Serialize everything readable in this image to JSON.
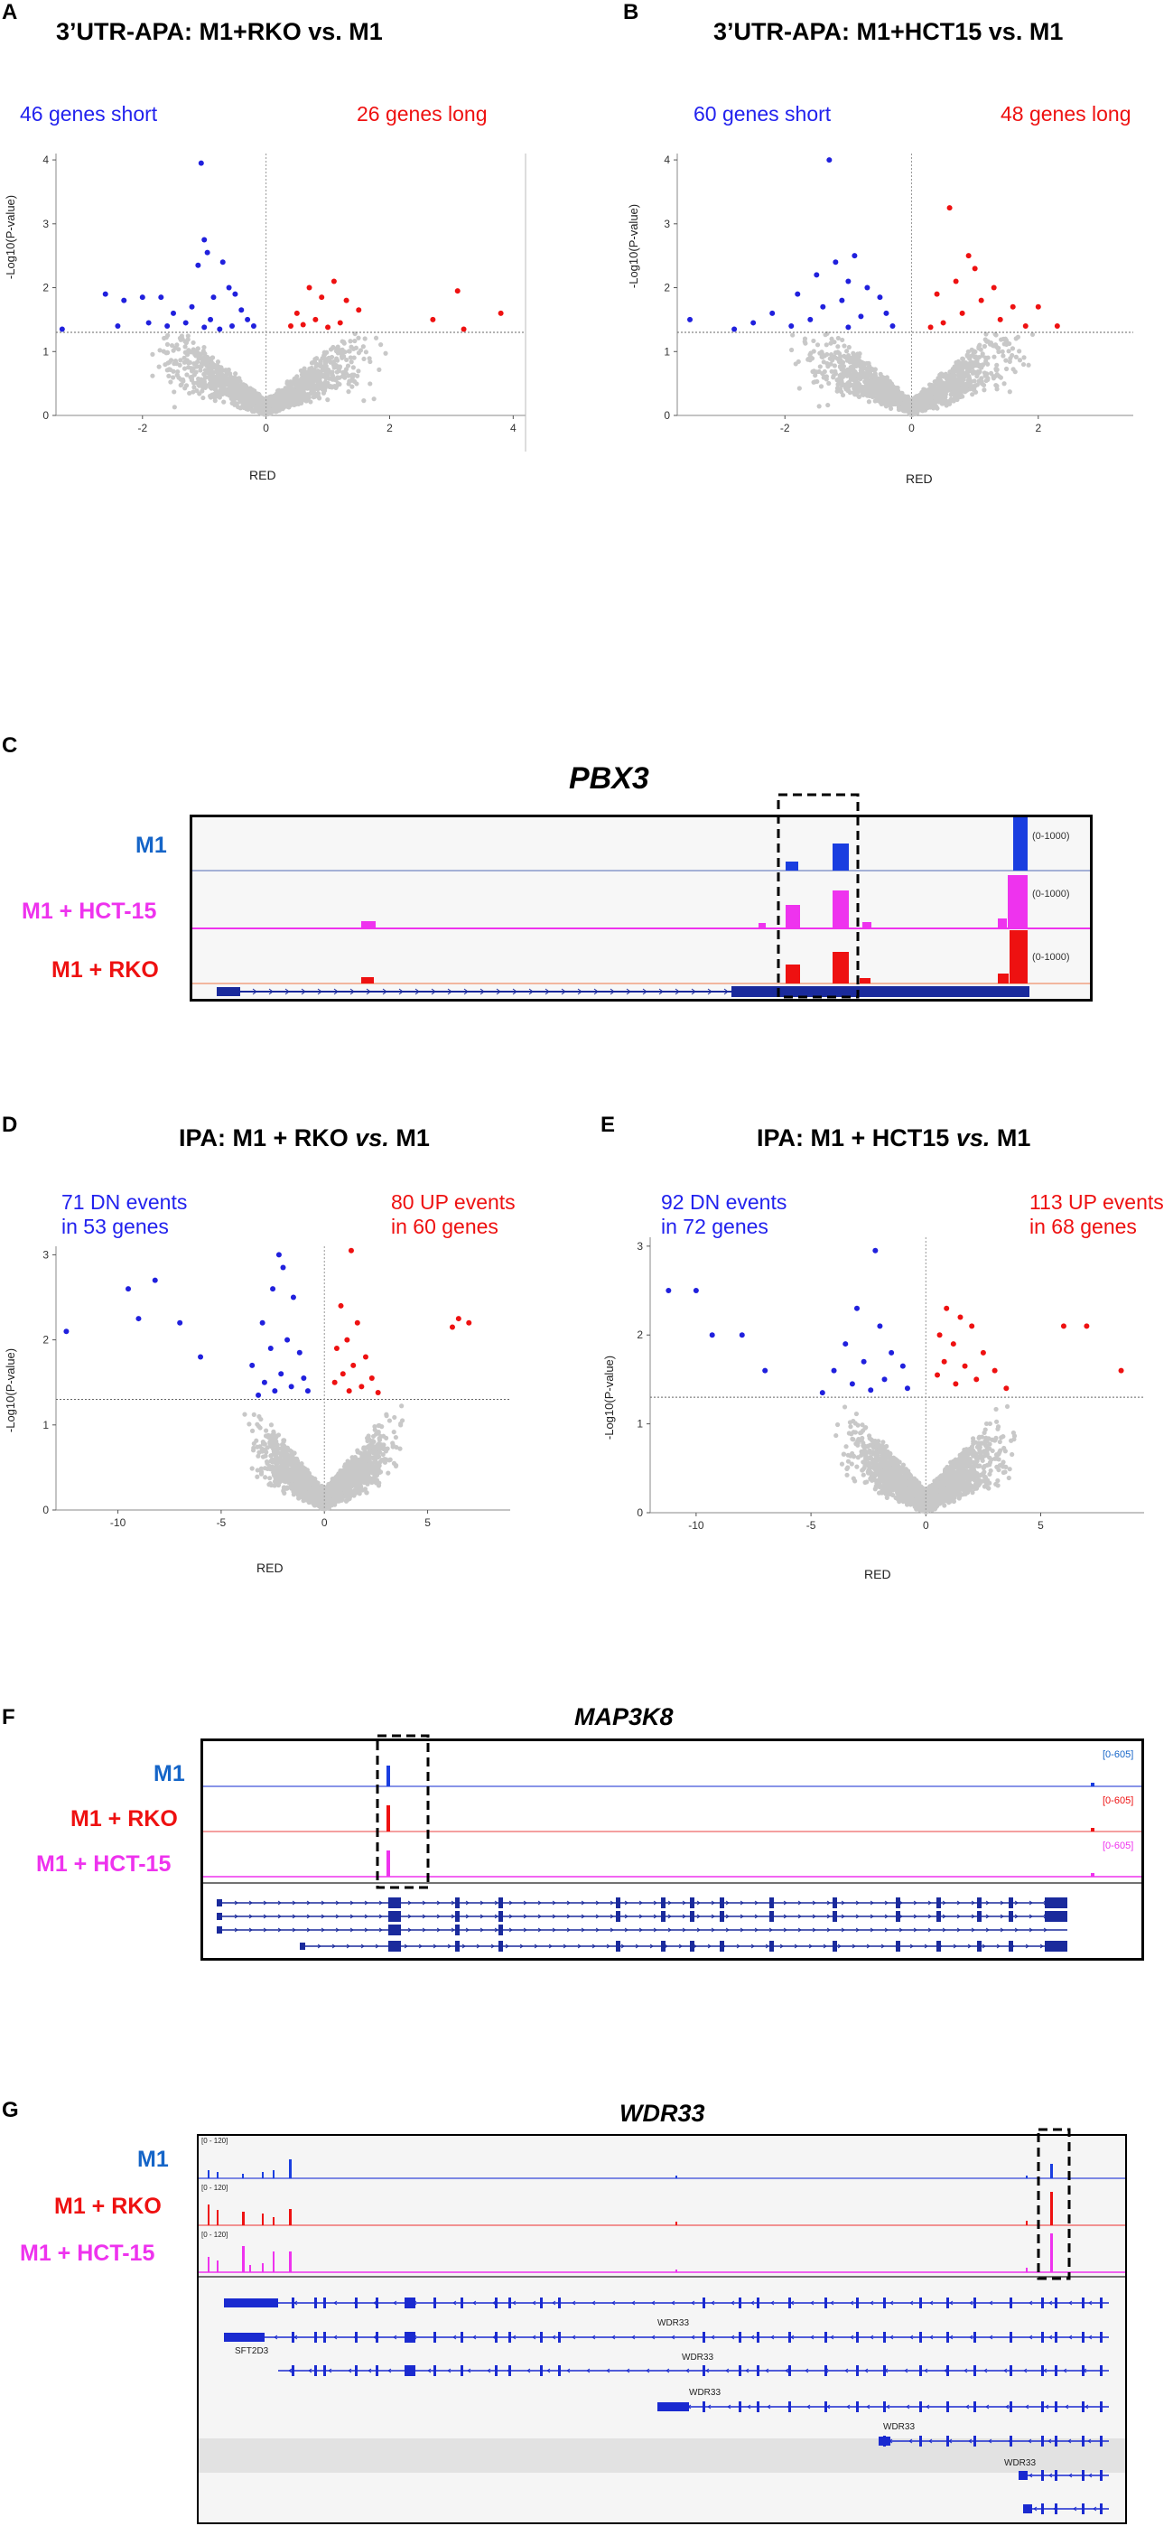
{
  "panelA": {
    "letter": "A",
    "title": "3’UTR-APA: M1+RKO vs. M1",
    "short_label": "46 genes short",
    "long_label": "26 genes long",
    "xlabel": "RED",
    "ylabel": "-Log10(P-value)"
  },
  "panelB": {
    "letter": "B",
    "title": "3’UTR-APA: M1+HCT15 vs. M1",
    "short_label": "60 genes short",
    "long_label": "48 genes long",
    "xlabel": "RED",
    "ylabel": "-Log10(P-value)"
  },
  "panelC": {
    "letter": "C",
    "gene": "PBX3",
    "tracks": [
      {
        "label": "M1",
        "range": "(0-1000)",
        "color": "#1565c8"
      },
      {
        "label": "M1 + HCT-15",
        "range": "(0-1000)",
        "color": "#ee33ee"
      },
      {
        "label": "M1 + RKO",
        "range": "(0-1000)",
        "color": "#ee1111"
      }
    ]
  },
  "panelD": {
    "letter": "D",
    "title_prefix": "IPA: M1 + RKO ",
    "title_italic": "vs.",
    "title_suffix": " M1",
    "dn_line1": "71 DN events",
    "dn_line2": "in 53 genes",
    "up_line1": "80 UP events",
    "up_line2": "in 60 genes",
    "xlabel": "RED",
    "ylabel": "-Log10(P-value)"
  },
  "panelE": {
    "letter": "E",
    "title_prefix": "IPA: M1 + HCT15 ",
    "title_italic": "vs.",
    "title_suffix": " M1",
    "dn_line1": "92 DN events",
    "dn_line2": "in 72 genes",
    "up_line1": "113 UP events",
    "up_line2": "in 68 genes",
    "xlabel": "RED",
    "ylabel": "-Log10(P-value)"
  },
  "panelF": {
    "letter": "F",
    "gene": "MAP3K8",
    "tracks": [
      {
        "label": "M1",
        "range": "[0-605]",
        "color": "#1565c8"
      },
      {
        "label": "M1 + RKO",
        "range": "[0-605]",
        "color": "#ee1111"
      },
      {
        "label": "M1 + HCT-15",
        "range": "[0-605]",
        "color": "#ee33ee"
      }
    ]
  },
  "panelG": {
    "letter": "G",
    "gene": "WDR33",
    "tracks": [
      {
        "label": "M1",
        "range": "[0 - 120]",
        "color": "#1565c8"
      },
      {
        "label": "M1 + RKO",
        "range": "[0 - 120]",
        "color": "#ee1111"
      },
      {
        "label": "M1 + HCT-15",
        "range": "[0 - 120]",
        "color": "#ee33ee"
      }
    ],
    "annotations": [
      "WDR33",
      "SFT2D3",
      "WDR33",
      "WDR33",
      "WDR33",
      "WDR33"
    ]
  },
  "chart_data": [
    {
      "id": "A",
      "type": "scatter",
      "title": "3’UTR-APA: M1+RKO vs. M1",
      "xlabel": "RED",
      "ylabel": "-Log10(P-value)",
      "xlim": [
        -3.4,
        4.2
      ],
      "ylim": [
        0,
        4.1
      ],
      "xticks": [
        -2,
        0,
        2,
        4
      ],
      "yticks": [
        0,
        1,
        2,
        3,
        4
      ],
      "threshold_y": 1.3,
      "vline_x": 0,
      "short_points": [
        [
          -1.05,
          3.95
        ],
        [
          -1.0,
          2.75
        ],
        [
          -0.95,
          2.55
        ],
        [
          -1.1,
          2.35
        ],
        [
          -0.7,
          2.4
        ],
        [
          -0.6,
          2.0
        ],
        [
          -0.5,
          1.9
        ],
        [
          -0.85,
          1.85
        ],
        [
          -1.2,
          1.7
        ],
        [
          -0.4,
          1.65
        ],
        [
          -1.5,
          1.6
        ],
        [
          -2.0,
          1.85
        ],
        [
          -2.3,
          1.8
        ],
        [
          -2.6,
          1.9
        ],
        [
          -1.7,
          1.85
        ],
        [
          -0.3,
          1.5
        ],
        [
          -0.9,
          1.5
        ],
        [
          -1.3,
          1.45
        ],
        [
          -0.55,
          1.4
        ],
        [
          -0.75,
          1.35
        ],
        [
          -2.4,
          1.4
        ],
        [
          -1.9,
          1.45
        ],
        [
          -3.3,
          1.35
        ],
        [
          -1.6,
          1.4
        ],
        [
          -0.2,
          1.4
        ],
        [
          -1.0,
          1.38
        ]
      ],
      "long_points": [
        [
          0.7,
          2.0
        ],
        [
          1.1,
          2.1
        ],
        [
          0.9,
          1.85
        ],
        [
          1.3,
          1.8
        ],
        [
          0.5,
          1.6
        ],
        [
          1.5,
          1.65
        ],
        [
          0.8,
          1.5
        ],
        [
          1.2,
          1.45
        ],
        [
          0.4,
          1.4
        ],
        [
          1.0,
          1.38
        ],
        [
          3.1,
          1.95
        ],
        [
          3.2,
          1.35
        ],
        [
          3.8,
          1.6
        ],
        [
          2.7,
          1.5
        ],
        [
          0.6,
          1.42
        ]
      ]
    },
    {
      "id": "B",
      "type": "scatter",
      "title": "3’UTR-APA: M1+HCT15 vs. M1",
      "xlabel": "RED",
      "ylabel": "-Log10(P-value)",
      "xlim": [
        -3.7,
        3.5
      ],
      "ylim": [
        0,
        4.1
      ],
      "xticks": [
        -2,
        0,
        2
      ],
      "yticks": [
        0,
        1,
        2,
        3,
        4
      ],
      "threshold_y": 1.3,
      "vline_x": 0,
      "short_points": [
        [
          -1.3,
          4.0
        ],
        [
          -1.2,
          2.4
        ],
        [
          -0.9,
          2.5
        ],
        [
          -1.5,
          2.2
        ],
        [
          -1.0,
          2.1
        ],
        [
          -0.7,
          2.0
        ],
        [
          -1.8,
          1.9
        ],
        [
          -0.5,
          1.85
        ],
        [
          -1.1,
          1.8
        ],
        [
          -1.4,
          1.7
        ],
        [
          -2.2,
          1.6
        ],
        [
          -0.4,
          1.6
        ],
        [
          -0.8,
          1.55
        ],
        [
          -1.6,
          1.5
        ],
        [
          -2.5,
          1.45
        ],
        [
          -2.8,
          1.35
        ],
        [
          -3.5,
          1.5
        ],
        [
          -0.3,
          1.4
        ],
        [
          -1.9,
          1.4
        ],
        [
          -1.0,
          1.38
        ]
      ],
      "long_points": [
        [
          0.6,
          3.25
        ],
        [
          0.9,
          2.5
        ],
        [
          1.0,
          2.3
        ],
        [
          0.7,
          2.1
        ],
        [
          1.3,
          2.0
        ],
        [
          0.4,
          1.9
        ],
        [
          1.1,
          1.8
        ],
        [
          1.6,
          1.7
        ],
        [
          0.8,
          1.6
        ],
        [
          2.0,
          1.7
        ],
        [
          1.4,
          1.5
        ],
        [
          0.5,
          1.45
        ],
        [
          2.3,
          1.4
        ],
        [
          1.8,
          1.4
        ],
        [
          0.3,
          1.38
        ]
      ]
    },
    {
      "id": "D",
      "type": "scatter",
      "title": "IPA: M1 + RKO vs. M1",
      "xlabel": "RED",
      "ylabel": "-Log10(P-value)",
      "xlim": [
        -13,
        9
      ],
      "ylim": [
        0,
        3.1
      ],
      "xticks": [
        -10,
        -5,
        0,
        5
      ],
      "yticks": [
        0,
        1,
        2,
        3
      ],
      "threshold_y": 1.3,
      "vline_x": 0,
      "dn_points": [
        [
          -2.2,
          3.0
        ],
        [
          -2.0,
          2.85
        ],
        [
          -2.5,
          2.6
        ],
        [
          -9.5,
          2.6
        ],
        [
          -8.2,
          2.7
        ],
        [
          -12.5,
          2.1
        ],
        [
          -9.0,
          2.25
        ],
        [
          -7.0,
          2.2
        ],
        [
          -6.0,
          1.8
        ],
        [
          -1.5,
          2.5
        ],
        [
          -3.0,
          2.2
        ],
        [
          -1.8,
          2.0
        ],
        [
          -2.6,
          1.9
        ],
        [
          -1.2,
          1.85
        ],
        [
          -3.5,
          1.7
        ],
        [
          -2.1,
          1.6
        ],
        [
          -1.0,
          1.55
        ],
        [
          -2.9,
          1.5
        ],
        [
          -1.6,
          1.45
        ],
        [
          -2.4,
          1.4
        ],
        [
          -0.8,
          1.4
        ],
        [
          -3.2,
          1.35
        ]
      ],
      "up_points": [
        [
          1.3,
          3.05
        ],
        [
          0.8,
          2.4
        ],
        [
          1.6,
          2.2
        ],
        [
          1.1,
          2.0
        ],
        [
          0.6,
          1.9
        ],
        [
          2.0,
          1.8
        ],
        [
          1.4,
          1.7
        ],
        [
          0.9,
          1.6
        ],
        [
          2.3,
          1.55
        ],
        [
          0.5,
          1.5
        ],
        [
          1.8,
          1.45
        ],
        [
          1.2,
          1.4
        ],
        [
          2.6,
          1.38
        ],
        [
          6.5,
          2.25
        ],
        [
          7.0,
          2.2
        ],
        [
          6.2,
          2.15
        ]
      ]
    },
    {
      "id": "E",
      "type": "scatter",
      "title": "IPA: M1 + HCT15 vs. M1",
      "xlabel": "RED",
      "ylabel": "-Log10(P-value)",
      "xlim": [
        -12,
        9.5
      ],
      "ylim": [
        0,
        3.1
      ],
      "xticks": [
        -10,
        -5,
        0,
        5
      ],
      "yticks": [
        0,
        1,
        2,
        3
      ],
      "threshold_y": 1.3,
      "vline_x": 0,
      "dn_points": [
        [
          -2.2,
          2.95
        ],
        [
          -10.0,
          2.5
        ],
        [
          -11.2,
          2.5
        ],
        [
          -9.3,
          2.0
        ],
        [
          -8.0,
          2.0
        ],
        [
          -7.0,
          1.6
        ],
        [
          -3.0,
          2.3
        ],
        [
          -2.0,
          2.1
        ],
        [
          -3.5,
          1.9
        ],
        [
          -1.5,
          1.8
        ],
        [
          -2.7,
          1.7
        ],
        [
          -1.0,
          1.65
        ],
        [
          -4.0,
          1.6
        ],
        [
          -1.8,
          1.5
        ],
        [
          -3.2,
          1.45
        ],
        [
          -0.8,
          1.4
        ],
        [
          -2.4,
          1.38
        ],
        [
          -4.5,
          1.35
        ]
      ],
      "up_points": [
        [
          0.9,
          2.3
        ],
        [
          1.5,
          2.2
        ],
        [
          0.6,
          2.0
        ],
        [
          2.0,
          2.1
        ],
        [
          1.2,
          1.9
        ],
        [
          2.5,
          1.8
        ],
        [
          0.8,
          1.7
        ],
        [
          1.7,
          1.65
        ],
        [
          3.0,
          1.6
        ],
        [
          0.5,
          1.55
        ],
        [
          2.2,
          1.5
        ],
        [
          1.3,
          1.45
        ],
        [
          3.5,
          1.4
        ],
        [
          7.0,
          2.1
        ],
        [
          6.0,
          2.1
        ],
        [
          8.5,
          1.6
        ]
      ]
    }
  ]
}
